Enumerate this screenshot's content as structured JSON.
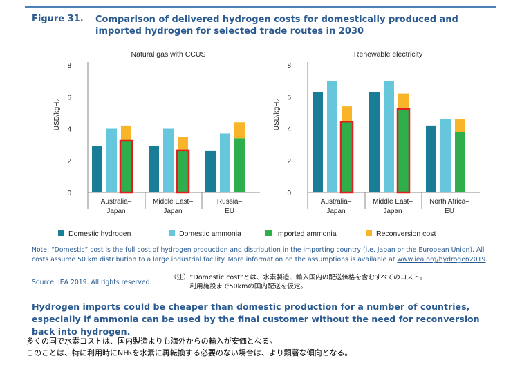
{
  "figure": {
    "label": "Figure 31.",
    "title": "Comparison of delivered hydrogen costs for domestically produced and imported hydrogen for selected trade routes in 2030"
  },
  "colors": {
    "domestic_hydrogen": "#1a7d96",
    "domestic_ammonia": "#66c7dc",
    "imported_ammonia": "#2fae4c",
    "reconversion_cost": "#f8b52a",
    "highlight": "#e02020",
    "axis": "#888888"
  },
  "chart_data": [
    {
      "type": "bar",
      "stacked_series": [
        "Imported ammonia",
        "Reconversion cost"
      ],
      "title": "Natural gas with CCUS",
      "ylabel": "USD/kgH₂",
      "ylim": [
        0,
        8
      ],
      "yticks": [
        "0",
        "2",
        "4",
        "6",
        "8"
      ],
      "categories": [
        {
          "line1": "Australia–",
          "line2": "Japan"
        },
        {
          "line1": "Middle East–",
          "line2": "Japan"
        },
        {
          "line1": "Russia–",
          "line2": "EU"
        }
      ],
      "series": [
        {
          "name": "Domestic hydrogen",
          "values": [
            2.9,
            2.9,
            2.6
          ]
        },
        {
          "name": "Domestic ammonia",
          "values": [
            4.0,
            4.0,
            3.7
          ]
        },
        {
          "name": "Imported ammonia",
          "values": [
            3.2,
            2.6,
            3.4
          ]
        },
        {
          "name": "Reconversion cost",
          "values": [
            1.0,
            0.9,
            1.0
          ]
        }
      ],
      "highlighted": [
        true,
        true,
        false
      ]
    },
    {
      "type": "bar",
      "stacked_series": [
        "Imported ammonia",
        "Reconversion cost"
      ],
      "title": "Renewable electricity",
      "ylabel": "USD/kgH₂",
      "ylim": [
        0,
        8
      ],
      "yticks": [
        "0",
        "2",
        "4",
        "6",
        "8"
      ],
      "categories": [
        {
          "line1": "Australia–",
          "line2": "Japan"
        },
        {
          "line1": "Middle East–",
          "line2": "Japan"
        },
        {
          "line1": "North Africa–",
          "line2": "EU"
        }
      ],
      "series": [
        {
          "name": "Domestic hydrogen",
          "values": [
            6.3,
            6.3,
            4.2
          ]
        },
        {
          "name": "Domestic ammonia",
          "values": [
            7.0,
            7.0,
            4.6
          ]
        },
        {
          "name": "Imported ammonia",
          "values": [
            4.4,
            5.2,
            3.8
          ]
        },
        {
          "name": "Reconversion cost",
          "values": [
            1.0,
            1.0,
            0.8
          ]
        }
      ],
      "highlighted": [
        true,
        true,
        false
      ]
    }
  ],
  "legend": [
    "Domestic hydrogen",
    "Domestic ammonia",
    "Imported ammonia",
    "Reconversion cost"
  ],
  "note": {
    "text": "Note: “Domestic” cost is the full cost of hydrogen production and distribution in the importing country (i.e. Japan or the European Union). All costs assume 50 km distribution to a large industrial facility. More information on the assumptions is available at ",
    "link": "www.iea.org/hydrogen2019",
    "link_suffix": "."
  },
  "source": "Source: IEA 2019. All rights reserved.",
  "jp_note": "（注）“Domestic cost”とは、水素製造、輸入国内の配送価格を含むすべてのコスト。\n　　　利用施設まで50kmの国内配送を仮定。",
  "headline": "Hydrogen imports could be cheaper than domestic production for a number of countries, especially if ammonia can be used by the final customer without the need for reconversion back into hydrogen.",
  "jp_bottom": "多くの国で水素コストは、国内製造よりも海外からの輸入が安価となる。\nこのことは、特に利用時にNH₃を水素に再転換する必要のない場合は、より顕著な傾向となる。"
}
